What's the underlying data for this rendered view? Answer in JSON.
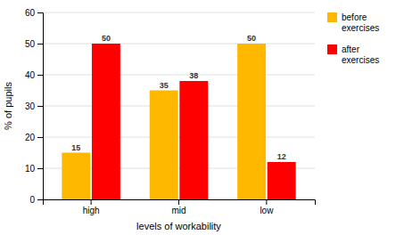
{
  "chart_data": {
    "type": "bar",
    "categories": [
      "high",
      "mid",
      "low"
    ],
    "series": [
      {
        "name": "before\nexercises",
        "color": "#FFB800",
        "values": [
          15,
          35,
          50
        ]
      },
      {
        "name": "after\nexercises",
        "color": "#FF0000",
        "values": [
          50,
          38,
          12
        ]
      }
    ],
    "xlabel": "levels of workability",
    "ylabel": "% of pupils",
    "ylim": [
      0,
      60
    ],
    "yticks": [
      0,
      10,
      20,
      30,
      40,
      50,
      60
    ],
    "grid": true,
    "legend": "right",
    "data_labels": true
  }
}
